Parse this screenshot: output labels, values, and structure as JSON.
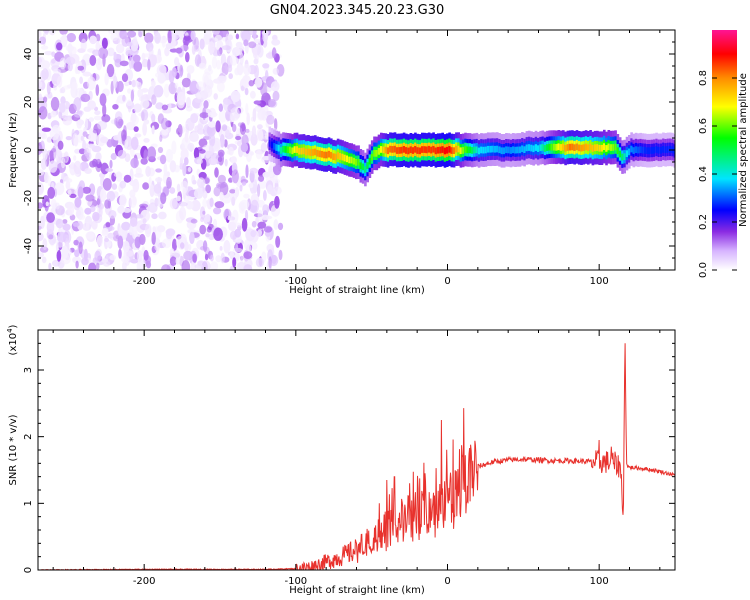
{
  "figure_title": "GN04.2023.345.20.23.G30",
  "chart_data": [
    {
      "type": "heatmap",
      "xlabel": "Height of straight line (km)",
      "ylabel": "Frequency (Hz)",
      "xlim": [
        -270,
        150
      ],
      "ylim": [
        -50,
        50
      ],
      "xticks": [
        -200,
        -100,
        0,
        100
      ],
      "yticks": [
        -40,
        -20,
        0,
        20,
        40
      ],
      "colorbar": {
        "label": "Normalized spectral amplitude",
        "range": [
          0,
          1
        ],
        "ticks": [
          0.0,
          0.2,
          0.4,
          0.6,
          0.8
        ],
        "tick_labels": [
          "0.0",
          "0.2",
          "0.4",
          "0.6",
          "0.8"
        ],
        "colormap": [
          "#ffffff",
          "#e2c8ff",
          "#8a2be2",
          "#0000ff",
          "#00e5ff",
          "#00ff00",
          "#ffff00",
          "#ff8c00",
          "#ff0000",
          "#ff1493"
        ]
      },
      "regions": [
        {
          "description_x": [
            -270,
            -110
          ],
          "y_extent": [
            -50,
            50
          ],
          "level": 0.15
        },
        {
          "description_x": [
            -110,
            150
          ],
          "y_center": 0,
          "y_halfwidth": 5,
          "level": 0.5
        }
      ],
      "ridge_track": {
        "x": [
          -118,
          -110,
          -100,
          -90,
          -80,
          -70,
          -60,
          -55,
          -50,
          -45,
          -40,
          -30,
          -20,
          -10,
          0,
          10,
          20,
          40,
          60,
          80,
          100,
          110,
          115,
          120,
          130,
          150
        ],
        "y": [
          3,
          0,
          0,
          -1,
          -2,
          -3,
          -5,
          -8,
          -2,
          0,
          0,
          0,
          0,
          0,
          0,
          0,
          0,
          0,
          1,
          1,
          1,
          1,
          -3,
          0,
          0,
          0
        ],
        "amp": [
          0.3,
          0.5,
          0.7,
          0.75,
          0.8,
          0.7,
          0.6,
          0.5,
          0.6,
          0.65,
          0.8,
          0.85,
          0.85,
          0.85,
          0.9,
          0.6,
          0.45,
          0.4,
          0.45,
          0.8,
          0.7,
          0.6,
          0.5,
          0.4,
          0.35,
          0.35
        ]
      }
    },
    {
      "type": "line",
      "xlabel": "Height of straight line (km)",
      "ylabel": "SNR (10 * v/v)",
      "y_multiplier_label": "(x10",
      "y_multiplier_exp": "4",
      "xlim": [
        -270,
        150
      ],
      "ylim": [
        0,
        3.6
      ],
      "xticks": [
        -200,
        -100,
        0,
        100
      ],
      "yticks": [
        0,
        1,
        2,
        3
      ],
      "series": [
        {
          "color": "#e8322d",
          "x": [
            -270,
            -200,
            -120,
            -100,
            -90,
            -80,
            -70,
            -60,
            -50,
            -40,
            -30,
            -20,
            -10,
            0,
            10,
            20,
            30,
            40,
            50,
            60,
            70,
            80,
            90,
            100,
            105,
            110,
            114,
            116,
            117,
            118,
            119,
            120,
            130,
            140,
            150
          ],
          "y": [
            0.0,
            0.01,
            0.01,
            0.02,
            0.05,
            0.12,
            0.2,
            0.3,
            0.45,
            0.6,
            0.75,
            0.85,
            0.95,
            1.1,
            1.35,
            1.55,
            1.62,
            1.65,
            1.66,
            1.65,
            1.64,
            1.64,
            1.63,
            1.62,
            1.62,
            1.6,
            1.55,
            0.85,
            3.6,
            1.6,
            1.55,
            1.54,
            1.52,
            1.48,
            1.42
          ]
        }
      ],
      "spikes": [
        {
          "x": -45,
          "y": 1.0
        },
        {
          "x": -40,
          "y": 1.35
        },
        {
          "x": -35,
          "y": 1.4
        },
        {
          "x": -25,
          "y": 1.3
        },
        {
          "x": -15,
          "y": 1.45
        },
        {
          "x": -4,
          "y": 2.25
        },
        {
          "x": 100,
          "y": 1.95
        },
        {
          "x": 108,
          "y": 1.85
        }
      ]
    }
  ]
}
